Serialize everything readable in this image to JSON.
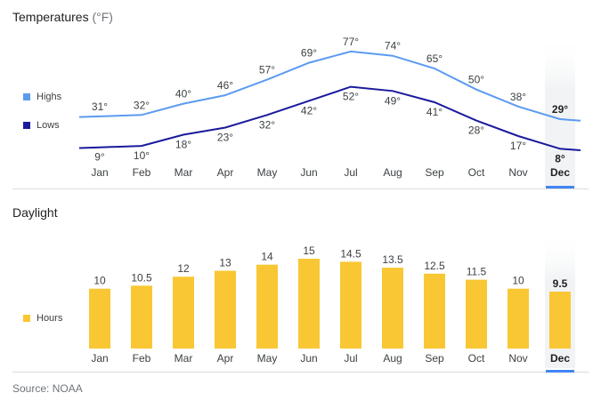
{
  "temperature": {
    "title": "Temperatures",
    "unit": "(°F)",
    "legend": {
      "highs": "Highs",
      "lows": "Lows"
    },
    "colors": {
      "highs": "#5b9bf0",
      "lows": "#1a1a9c"
    }
  },
  "daylight": {
    "title": "Daylight",
    "legend": {
      "hours": "Hours"
    },
    "color": "#f9c733"
  },
  "selected_month": "Dec",
  "source": "Source: NOAA",
  "chart_data": [
    {
      "type": "line",
      "title": "Temperatures (°F)",
      "categories": [
        "Jan",
        "Feb",
        "Mar",
        "Apr",
        "May",
        "Jun",
        "Jul",
        "Aug",
        "Sep",
        "Oct",
        "Nov",
        "Dec"
      ],
      "series": [
        {
          "name": "Highs",
          "values": [
            31,
            32,
            40,
            46,
            57,
            69,
            77,
            74,
            65,
            50,
            38,
            29
          ],
          "labels": [
            "31°",
            "32°",
            "40°",
            "46°",
            "57°",
            "69°",
            "77°",
            "74°",
            "65°",
            "50°",
            "38°",
            "29°"
          ]
        },
        {
          "name": "Lows",
          "values": [
            9,
            10,
            18,
            23,
            32,
            42,
            52,
            49,
            41,
            28,
            17,
            8
          ],
          "labels": [
            "9°",
            "10°",
            "18°",
            "23°",
            "32°",
            "42°",
            "52°",
            "49°",
            "41°",
            "28°",
            "17°",
            "8°"
          ]
        }
      ],
      "ylim": [
        0,
        82
      ]
    },
    {
      "type": "bar",
      "title": "Daylight",
      "categories": [
        "Jan",
        "Feb",
        "Mar",
        "Apr",
        "May",
        "Jun",
        "Jul",
        "Aug",
        "Sep",
        "Oct",
        "Nov",
        "Dec"
      ],
      "series": [
        {
          "name": "Hours",
          "values": [
            10,
            10.5,
            12,
            13,
            14,
            15,
            14.5,
            13.5,
            12.5,
            11.5,
            10,
            9.5
          ],
          "labels": [
            "10",
            "10.5",
            "12",
            "13",
            "14",
            "15",
            "14.5",
            "13.5",
            "12.5",
            "11.5",
            "10",
            "9.5"
          ]
        }
      ],
      "ylim": [
        0,
        15
      ]
    }
  ]
}
